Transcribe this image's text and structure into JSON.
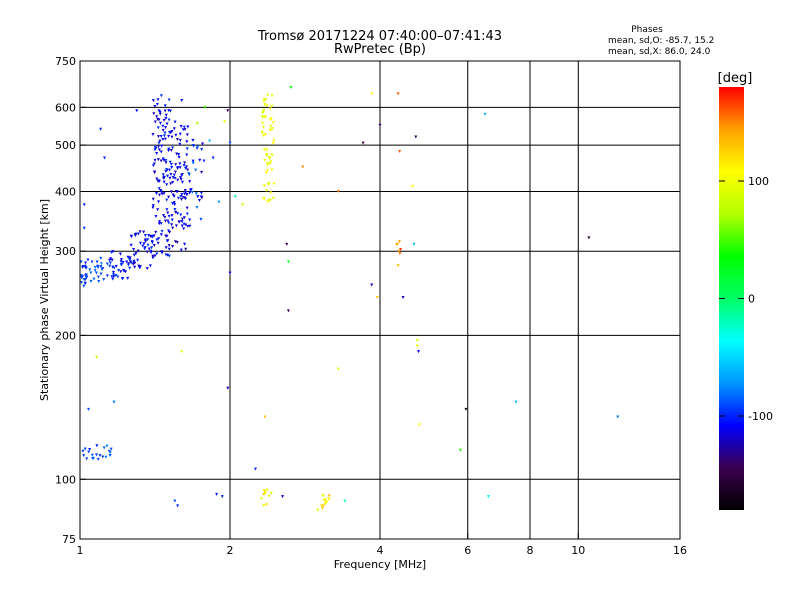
{
  "chart_data": {
    "type": "scatter",
    "title": "Tromsø 20171224 07:40:00–07:41:43",
    "subtitle": "RwPretec (Bp)",
    "stats": {
      "heading": "Phases",
      "line1": "mean, sd,O: -85.7, 15.2",
      "line2": "mean, sd,X:  86.0, 24.0"
    },
    "xlabel": "Frequency [MHz]",
    "ylabel": "Stationary phase Virtual Height [km]",
    "x_scale": "log",
    "y_scale": "log",
    "xlim": [
      1,
      16
    ],
    "ylim": [
      75,
      750
    ],
    "grid": true,
    "x_gridlines": [
      2,
      4,
      6,
      8,
      10
    ],
    "y_gridlines": [
      100,
      200,
      300,
      400,
      500,
      600
    ],
    "x_ticks": [
      {
        "value": 1,
        "label": "1"
      },
      {
        "value": 2,
        "label": "2"
      },
      {
        "value": 4,
        "label": "4"
      },
      {
        "value": 6,
        "label": "6"
      },
      {
        "value": 8,
        "label": "8"
      },
      {
        "value": 10,
        "label": "10"
      },
      {
        "value": 16,
        "label": "16"
      }
    ],
    "y_ticks": [
      {
        "value": 75,
        "label": "75"
      },
      {
        "value": 100,
        "label": "100"
      },
      {
        "value": 200,
        "label": "200"
      },
      {
        "value": 300,
        "label": "300"
      },
      {
        "value": 400,
        "label": "400"
      },
      {
        "value": 500,
        "label": "500"
      },
      {
        "value": 600,
        "label": "600"
      },
      {
        "value": 750,
        "label": "750"
      }
    ],
    "colorbar": {
      "label": "[deg]",
      "range": [
        -180,
        180
      ],
      "ticks": [
        {
          "value": 100,
          "label": "100"
        },
        {
          "value": 0,
          "label": "0"
        },
        {
          "value": -100,
          "label": "-100"
        }
      ],
      "stops": [
        "#000000",
        "#3c0050",
        "#0000ff",
        "#0096ff",
        "#00ffff",
        "#00ff64",
        "#00ff00",
        "#b4ff00",
        "#ffff00",
        "#ffa000",
        "#ff0000"
      ]
    },
    "clusters": [
      {
        "f_min": 1.0,
        "f_max": 1.03,
        "h_min": 250,
        "h_max": 290,
        "phase": -95,
        "count": 20,
        "jitter": 10
      },
      {
        "f_min": 1.03,
        "f_max": 1.12,
        "h_min": 255,
        "h_max": 290,
        "phase": -90,
        "count": 25,
        "jitter": 12
      },
      {
        "f_min": 1.12,
        "f_max": 1.25,
        "h_min": 262,
        "h_max": 300,
        "phase": -105,
        "count": 35,
        "jitter": 15
      },
      {
        "f_min": 1.25,
        "f_max": 1.4,
        "h_min": 275,
        "h_max": 335,
        "phase": -108,
        "count": 55,
        "jitter": 15
      },
      {
        "f_min": 1.4,
        "f_max": 1.52,
        "h_min": 290,
        "h_max": 640,
        "phase": -110,
        "count": 130,
        "jitter": 15
      },
      {
        "f_min": 1.52,
        "f_max": 1.65,
        "h_min": 300,
        "h_max": 560,
        "phase": -112,
        "count": 95,
        "jitter": 15
      },
      {
        "f_min": 1.65,
        "f_max": 1.78,
        "h_min": 330,
        "h_max": 520,
        "phase": -100,
        "count": 30,
        "jitter": 20
      },
      {
        "f_min": 1.0,
        "f_max": 1.1,
        "h_min": 110,
        "h_max": 118,
        "phase": -95,
        "count": 14,
        "jitter": 10
      },
      {
        "f_min": 1.1,
        "f_max": 1.16,
        "h_min": 111,
        "h_max": 118,
        "phase": -85,
        "count": 8,
        "jitter": 10
      },
      {
        "f_min": 2.32,
        "f_max": 2.45,
        "h_min": 380,
        "h_max": 640,
        "phase": 100,
        "count": 60,
        "jitter": 10
      },
      {
        "f_min": 2.3,
        "f_max": 2.45,
        "h_min": 88,
        "h_max": 95,
        "phase": 110,
        "count": 10,
        "jitter": 25
      },
      {
        "f_min": 3.0,
        "f_max": 3.2,
        "h_min": 86,
        "h_max": 93,
        "phase": 112,
        "count": 14,
        "jitter": 25
      },
      {
        "f_min": 4.32,
        "f_max": 4.42,
        "h_min": 295,
        "h_max": 315,
        "phase": 150,
        "count": 6,
        "jitter": 20
      }
    ],
    "points": [
      {
        "f": 1.0,
        "h": 420,
        "phase": -120
      },
      {
        "f": 1.02,
        "h": 335,
        "phase": -95
      },
      {
        "f": 1.02,
        "h": 375,
        "phase": -100
      },
      {
        "f": 1.1,
        "h": 540,
        "phase": -100
      },
      {
        "f": 1.12,
        "h": 470,
        "phase": -100
      },
      {
        "f": 1.3,
        "h": 590,
        "phase": -110
      },
      {
        "f": 1.17,
        "h": 145,
        "phase": -80
      },
      {
        "f": 1.08,
        "h": 180,
        "phase": 80
      },
      {
        "f": 1.04,
        "h": 140,
        "phase": -90
      },
      {
        "f": 1.2,
        "h": 75,
        "phase": -60
      },
      {
        "f": 1.6,
        "h": 620,
        "phase": -110
      },
      {
        "f": 1.72,
        "h": 555,
        "phase": 70
      },
      {
        "f": 1.78,
        "h": 600,
        "phase": 50
      },
      {
        "f": 1.82,
        "h": 510,
        "phase": -60
      },
      {
        "f": 1.85,
        "h": 470,
        "phase": -100
      },
      {
        "f": 1.9,
        "h": 380,
        "phase": -70
      },
      {
        "f": 1.95,
        "h": 560,
        "phase": 100
      },
      {
        "f": 1.98,
        "h": 590,
        "phase": -140
      },
      {
        "f": 2.0,
        "h": 505,
        "phase": -90
      },
      {
        "f": 2.0,
        "h": 270,
        "phase": -120
      },
      {
        "f": 2.05,
        "h": 390,
        "phase": -20
      },
      {
        "f": 2.12,
        "h": 375,
        "phase": 80
      },
      {
        "f": 1.98,
        "h": 155,
        "phase": -120
      },
      {
        "f": 2.25,
        "h": 105,
        "phase": -100
      },
      {
        "f": 2.35,
        "h": 135,
        "phase": 130
      },
      {
        "f": 1.6,
        "h": 185,
        "phase": 90
      },
      {
        "f": 1.55,
        "h": 90,
        "phase": -90
      },
      {
        "f": 1.57,
        "h": 88,
        "phase": -100
      },
      {
        "f": 1.88,
        "h": 93,
        "phase": -100
      },
      {
        "f": 1.93,
        "h": 92,
        "phase": -100
      },
      {
        "f": 2.55,
        "h": 92,
        "phase": -120
      },
      {
        "f": 2.6,
        "h": 310,
        "phase": -150
      },
      {
        "f": 2.62,
        "h": 285,
        "phase": 30
      },
      {
        "f": 2.62,
        "h": 225,
        "phase": -140
      },
      {
        "f": 2.65,
        "h": 660,
        "phase": 30
      },
      {
        "f": 2.8,
        "h": 450,
        "phase": 150
      },
      {
        "f": 3.3,
        "h": 400,
        "phase": 150
      },
      {
        "f": 3.3,
        "h": 170,
        "phase": 90
      },
      {
        "f": 3.4,
        "h": 90,
        "phase": -20
      },
      {
        "f": 3.7,
        "h": 505,
        "phase": -150
      },
      {
        "f": 3.85,
        "h": 255,
        "phase": -120
      },
      {
        "f": 3.85,
        "h": 640,
        "phase": 110
      },
      {
        "f": 3.95,
        "h": 240,
        "phase": 130
      },
      {
        "f": 4.0,
        "h": 550,
        "phase": -140
      },
      {
        "f": 4.35,
        "h": 640,
        "phase": 160
      },
      {
        "f": 4.38,
        "h": 485,
        "phase": 160
      },
      {
        "f": 4.35,
        "h": 280,
        "phase": 130
      },
      {
        "f": 4.45,
        "h": 240,
        "phase": -120
      },
      {
        "f": 4.65,
        "h": 410,
        "phase": 110
      },
      {
        "f": 4.68,
        "h": 310,
        "phase": -60
      },
      {
        "f": 4.72,
        "h": 520,
        "phase": -140
      },
      {
        "f": 4.75,
        "h": 195,
        "phase": 90
      },
      {
        "f": 4.75,
        "h": 190,
        "phase": 100
      },
      {
        "f": 4.78,
        "h": 185,
        "phase": -110
      },
      {
        "f": 4.8,
        "h": 130,
        "phase": 110
      },
      {
        "f": 5.95,
        "h": 140,
        "phase": -170
      },
      {
        "f": 5.8,
        "h": 115,
        "phase": 40
      },
      {
        "f": 6.5,
        "h": 580,
        "phase": -60
      },
      {
        "f": 6.6,
        "h": 92,
        "phase": -40
      },
      {
        "f": 7.5,
        "h": 145,
        "phase": -60
      },
      {
        "f": 10.5,
        "h": 320,
        "phase": -160
      },
      {
        "f": 12.0,
        "h": 135,
        "phase": -80
      }
    ]
  }
}
